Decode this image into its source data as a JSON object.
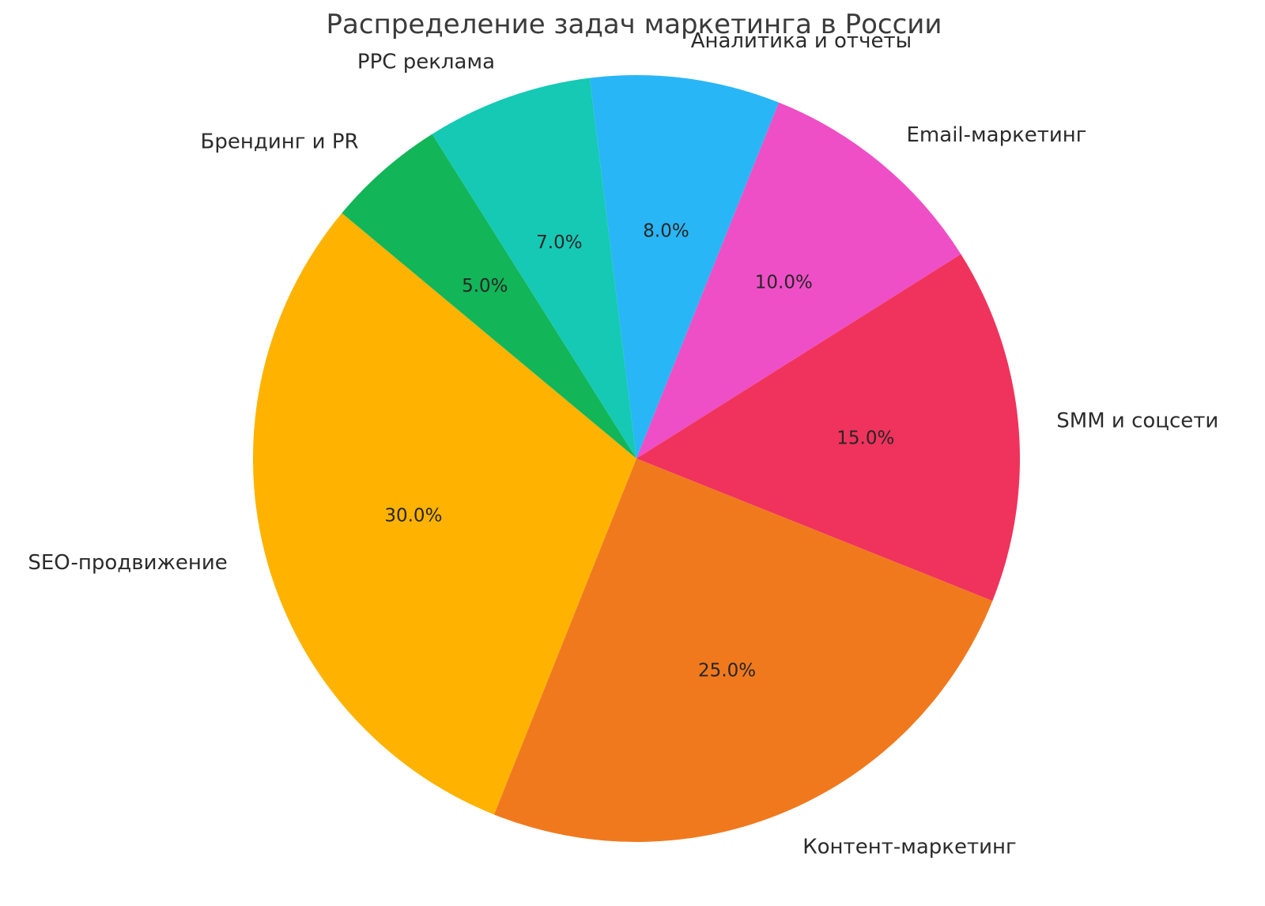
{
  "chart_data": {
    "type": "pie",
    "title": "Распределение задач маркетинга в России",
    "labels": [
      "Аналитика и отчеты",
      "Email-маркетинг",
      "SMM и соцсети",
      "Контент-маркетинг",
      "SEO-продвижение",
      "Брендинг и PR",
      "PPC реклама"
    ],
    "values": [
      8.0,
      10.0,
      15.0,
      25.0,
      30.0,
      5.0,
      7.0
    ],
    "percent_labels": [
      "8.0%",
      "10.0%",
      "15.0%",
      "25.0%",
      "30.0%",
      "5.0%",
      "7.0%"
    ],
    "colors": [
      "#29b6f6",
      "#ee4fc6",
      "#f0335c",
      "#f0791e",
      "#ffb300",
      "#12b558",
      "#15c9b5"
    ],
    "title_color": "#3b3b3b",
    "text_color": "#2b2b2b",
    "background": "#ffffff",
    "legend": "none",
    "direction": "clockwise",
    "start_angle_deg_clockwise_from_top": -7,
    "label_radius": 1.1,
    "percent_radius": 0.6
  }
}
